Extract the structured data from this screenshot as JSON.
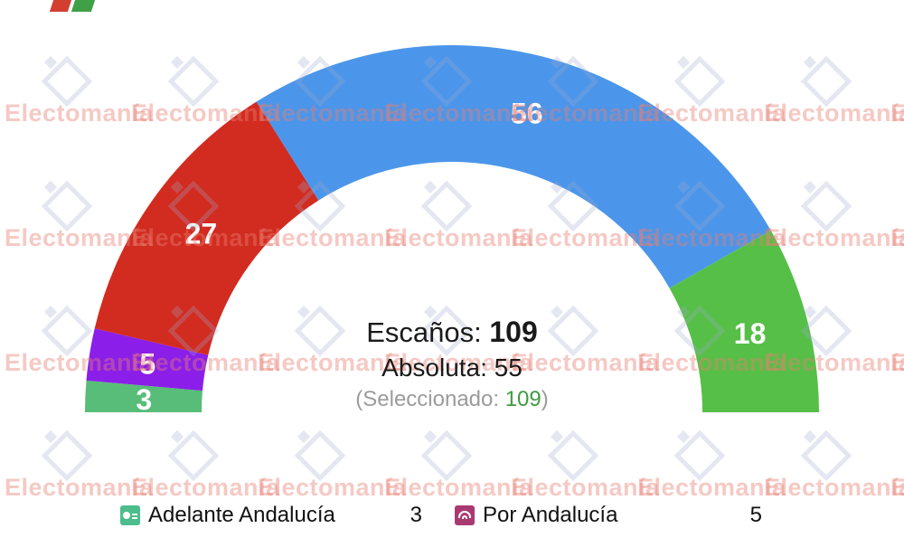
{
  "brand": {
    "watermark_text": "Electomanía",
    "corner_logo": {
      "red": "#d23f31",
      "green": "#3fa046"
    }
  },
  "chart_data": {
    "type": "hemicycle-donut",
    "orientation": "semicircle-180",
    "total_seats": 109,
    "label_color": "#ffffff",
    "segments": [
      {
        "name": "Adelante Andalucía",
        "seats": 3,
        "color": "#58bd78"
      },
      {
        "name": "Por Andalucía",
        "seats": 5,
        "color": "#8b1ee8"
      },
      {
        "seats": 27,
        "color": "#d22b20"
      },
      {
        "seats": 56,
        "color": "#4b96ea"
      },
      {
        "seats": 18,
        "color": "#56bf47"
      }
    ],
    "center": {
      "total_label": "Escaños: ",
      "total_value": "109",
      "majority_label": "Absoluta: ",
      "majority_value": "55",
      "selected_prefix": "(Seleccionado: ",
      "selected_value": "109",
      "selected_suffix": ")",
      "selected_value_color": "#3f9b42"
    }
  },
  "legend": {
    "items": [
      {
        "label": "Adelante Andalucía",
        "value": "3",
        "color": "#4cbd8c",
        "icon": "adelante-logo"
      },
      {
        "label": "Por Andalucía",
        "value": "5",
        "color": "#a83a72",
        "icon": "por-andalucia-rainbow"
      }
    ]
  }
}
